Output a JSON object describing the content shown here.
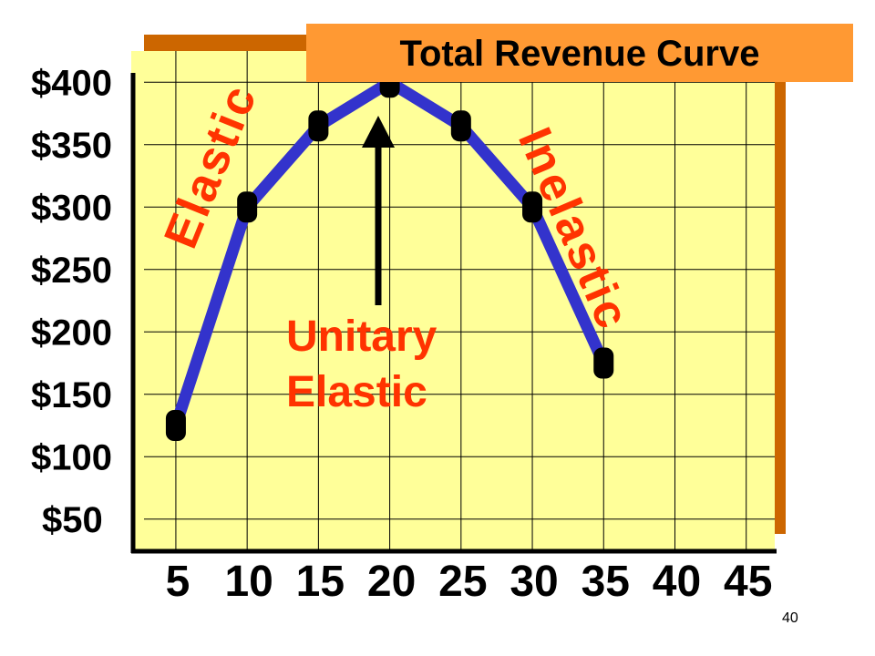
{
  "chart_data": {
    "type": "line",
    "title": "Total Revenue Curve",
    "xlabel": "",
    "ylabel": "",
    "x_tick_labels": [
      "5",
      "10",
      "15",
      "20",
      "25",
      "30",
      "35",
      "40",
      "45"
    ],
    "y_tick_labels": [
      "$50",
      "$100",
      "$150",
      "$200",
      "$250",
      "$300",
      "$350",
      "$400"
    ],
    "xlim": [
      2,
      47
    ],
    "ylim": [
      25,
      425
    ],
    "grid": true,
    "series": [
      {
        "x": [
          5,
          10,
          15,
          20,
          25,
          30,
          35
        ],
        "y": [
          125,
          300,
          365,
          400,
          365,
          300,
          175
        ]
      }
    ],
    "annotations": {
      "elastic": "Elastic",
      "inelastic": "Inelastic",
      "unitary_line1": "Unitary",
      "unitary_line2": "Elastic"
    },
    "colors": {
      "plot_background": "#ffff99",
      "line": "#3333cc",
      "markers": "#000000",
      "annotation": "#ff3300",
      "title_background": "#ff9933",
      "shadow": "#cc6600"
    }
  },
  "page_number": "40"
}
